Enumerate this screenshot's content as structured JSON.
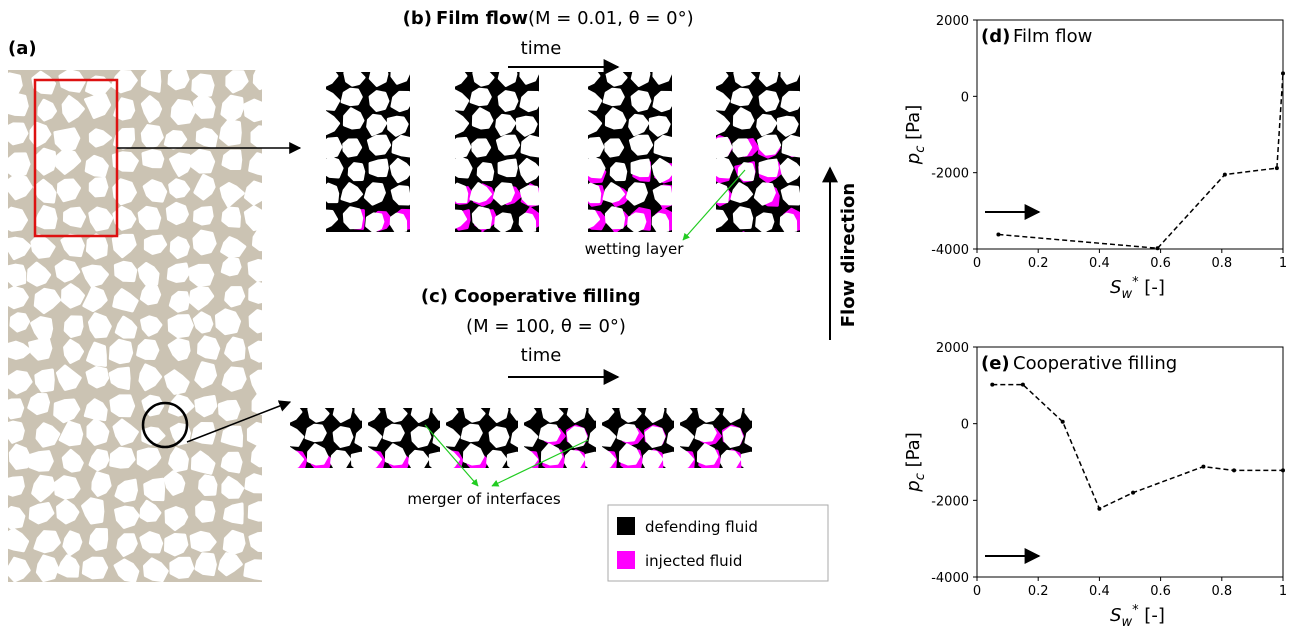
{
  "panel_a": {
    "tag": "(a)"
  },
  "panel_b": {
    "tag": "(b)",
    "title": "Film flow",
    "params": "(M = 0.01, θ = 0°)",
    "time": "time",
    "annotation": "wetting layer"
  },
  "panel_c": {
    "tag": "(c)",
    "title": "Cooperative filling",
    "params": "(M = 100, θ = 0°)",
    "time": "time",
    "annotation": "merger of interfaces"
  },
  "flow_direction": "Flow direction",
  "legend": [
    {
      "label": "defending fluid",
      "color": "#000000"
    },
    {
      "label": "injected fluid",
      "color": "#ff00ff"
    }
  ],
  "chart_data": [
    {
      "type": "line",
      "panel": "(d)",
      "title": "Film flow",
      "xlabel": {
        "main": "S",
        "sub": "w",
        "sup": "*",
        "rest": " [-]"
      },
      "ylabel": {
        "main": "p",
        "sub": "c",
        "rest": " [Pa]"
      },
      "xlim": [
        0,
        1
      ],
      "xticks": [
        0,
        0.2,
        0.4,
        0.6,
        0.8,
        1
      ],
      "ylim": [
        -4000,
        2000
      ],
      "yticks": [
        -4000,
        -2000,
        0,
        2000
      ],
      "linestyle": "dashed",
      "series": [
        {
          "color": "#000000",
          "x": [
            0.07,
            0.59,
            0.81,
            0.98,
            1.0
          ],
          "values": [
            -3620,
            -3980,
            -2050,
            -1880,
            600
          ]
        }
      ]
    },
    {
      "type": "line",
      "panel": "(e)",
      "title": "Cooperative filling",
      "xlabel": {
        "main": "S",
        "sub": "w",
        "sup": "*",
        "rest": " [-]"
      },
      "ylabel": {
        "main": "p",
        "sub": "c",
        "rest": " [Pa]"
      },
      "xlim": [
        0,
        1
      ],
      "xticks": [
        0,
        0.2,
        0.4,
        0.6,
        0.8,
        1
      ],
      "ylim": [
        -4000,
        2000
      ],
      "yticks": [
        -4000,
        -2000,
        0,
        2000
      ],
      "linestyle": "dashed",
      "series": [
        {
          "color": "#000000",
          "x": [
            0.05,
            0.15,
            0.28,
            0.4,
            0.51,
            0.74,
            0.84,
            1.0
          ],
          "values": [
            1020,
            1020,
            50,
            -2220,
            -1800,
            -1120,
            -1220,
            -1220
          ]
        }
      ]
    }
  ]
}
